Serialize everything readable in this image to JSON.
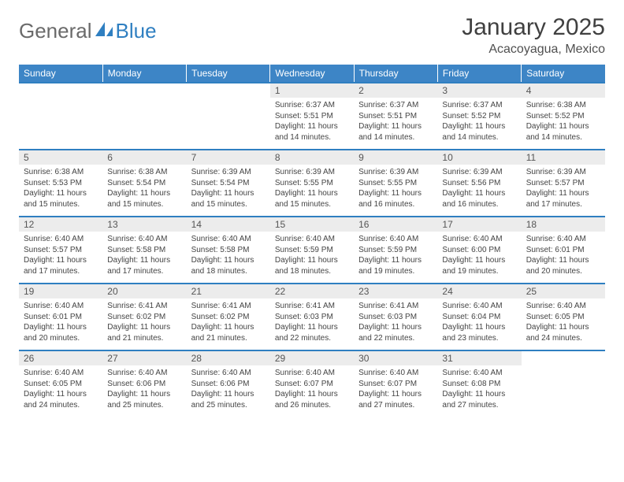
{
  "logo": {
    "part1": "General",
    "part2": "Blue"
  },
  "title": "January 2025",
  "location": "Acacoyagua, Mexico",
  "colors": {
    "header_bg": "#3d85c6",
    "header_text": "#ffffff",
    "row_divider": "#2f7fc1",
    "daynum_bg": "#ececec",
    "logo_blue": "#2f7fc1",
    "logo_gray": "#6a6a6a"
  },
  "weekdays": [
    "Sunday",
    "Monday",
    "Tuesday",
    "Wednesday",
    "Thursday",
    "Friday",
    "Saturday"
  ],
  "weeks": [
    [
      {
        "day": "",
        "sunrise": "",
        "sunset": "",
        "daylight": ""
      },
      {
        "day": "",
        "sunrise": "",
        "sunset": "",
        "daylight": ""
      },
      {
        "day": "",
        "sunrise": "",
        "sunset": "",
        "daylight": ""
      },
      {
        "day": "1",
        "sunrise": "Sunrise: 6:37 AM",
        "sunset": "Sunset: 5:51 PM",
        "daylight": "Daylight: 11 hours and 14 minutes."
      },
      {
        "day": "2",
        "sunrise": "Sunrise: 6:37 AM",
        "sunset": "Sunset: 5:51 PM",
        "daylight": "Daylight: 11 hours and 14 minutes."
      },
      {
        "day": "3",
        "sunrise": "Sunrise: 6:37 AM",
        "sunset": "Sunset: 5:52 PM",
        "daylight": "Daylight: 11 hours and 14 minutes."
      },
      {
        "day": "4",
        "sunrise": "Sunrise: 6:38 AM",
        "sunset": "Sunset: 5:52 PM",
        "daylight": "Daylight: 11 hours and 14 minutes."
      }
    ],
    [
      {
        "day": "5",
        "sunrise": "Sunrise: 6:38 AM",
        "sunset": "Sunset: 5:53 PM",
        "daylight": "Daylight: 11 hours and 15 minutes."
      },
      {
        "day": "6",
        "sunrise": "Sunrise: 6:38 AM",
        "sunset": "Sunset: 5:54 PM",
        "daylight": "Daylight: 11 hours and 15 minutes."
      },
      {
        "day": "7",
        "sunrise": "Sunrise: 6:39 AM",
        "sunset": "Sunset: 5:54 PM",
        "daylight": "Daylight: 11 hours and 15 minutes."
      },
      {
        "day": "8",
        "sunrise": "Sunrise: 6:39 AM",
        "sunset": "Sunset: 5:55 PM",
        "daylight": "Daylight: 11 hours and 15 minutes."
      },
      {
        "day": "9",
        "sunrise": "Sunrise: 6:39 AM",
        "sunset": "Sunset: 5:55 PM",
        "daylight": "Daylight: 11 hours and 16 minutes."
      },
      {
        "day": "10",
        "sunrise": "Sunrise: 6:39 AM",
        "sunset": "Sunset: 5:56 PM",
        "daylight": "Daylight: 11 hours and 16 minutes."
      },
      {
        "day": "11",
        "sunrise": "Sunrise: 6:39 AM",
        "sunset": "Sunset: 5:57 PM",
        "daylight": "Daylight: 11 hours and 17 minutes."
      }
    ],
    [
      {
        "day": "12",
        "sunrise": "Sunrise: 6:40 AM",
        "sunset": "Sunset: 5:57 PM",
        "daylight": "Daylight: 11 hours and 17 minutes."
      },
      {
        "day": "13",
        "sunrise": "Sunrise: 6:40 AM",
        "sunset": "Sunset: 5:58 PM",
        "daylight": "Daylight: 11 hours and 17 minutes."
      },
      {
        "day": "14",
        "sunrise": "Sunrise: 6:40 AM",
        "sunset": "Sunset: 5:58 PM",
        "daylight": "Daylight: 11 hours and 18 minutes."
      },
      {
        "day": "15",
        "sunrise": "Sunrise: 6:40 AM",
        "sunset": "Sunset: 5:59 PM",
        "daylight": "Daylight: 11 hours and 18 minutes."
      },
      {
        "day": "16",
        "sunrise": "Sunrise: 6:40 AM",
        "sunset": "Sunset: 5:59 PM",
        "daylight": "Daylight: 11 hours and 19 minutes."
      },
      {
        "day": "17",
        "sunrise": "Sunrise: 6:40 AM",
        "sunset": "Sunset: 6:00 PM",
        "daylight": "Daylight: 11 hours and 19 minutes."
      },
      {
        "day": "18",
        "sunrise": "Sunrise: 6:40 AM",
        "sunset": "Sunset: 6:01 PM",
        "daylight": "Daylight: 11 hours and 20 minutes."
      }
    ],
    [
      {
        "day": "19",
        "sunrise": "Sunrise: 6:40 AM",
        "sunset": "Sunset: 6:01 PM",
        "daylight": "Daylight: 11 hours and 20 minutes."
      },
      {
        "day": "20",
        "sunrise": "Sunrise: 6:41 AM",
        "sunset": "Sunset: 6:02 PM",
        "daylight": "Daylight: 11 hours and 21 minutes."
      },
      {
        "day": "21",
        "sunrise": "Sunrise: 6:41 AM",
        "sunset": "Sunset: 6:02 PM",
        "daylight": "Daylight: 11 hours and 21 minutes."
      },
      {
        "day": "22",
        "sunrise": "Sunrise: 6:41 AM",
        "sunset": "Sunset: 6:03 PM",
        "daylight": "Daylight: 11 hours and 22 minutes."
      },
      {
        "day": "23",
        "sunrise": "Sunrise: 6:41 AM",
        "sunset": "Sunset: 6:03 PM",
        "daylight": "Daylight: 11 hours and 22 minutes."
      },
      {
        "day": "24",
        "sunrise": "Sunrise: 6:40 AM",
        "sunset": "Sunset: 6:04 PM",
        "daylight": "Daylight: 11 hours and 23 minutes."
      },
      {
        "day": "25",
        "sunrise": "Sunrise: 6:40 AM",
        "sunset": "Sunset: 6:05 PM",
        "daylight": "Daylight: 11 hours and 24 minutes."
      }
    ],
    [
      {
        "day": "26",
        "sunrise": "Sunrise: 6:40 AM",
        "sunset": "Sunset: 6:05 PM",
        "daylight": "Daylight: 11 hours and 24 minutes."
      },
      {
        "day": "27",
        "sunrise": "Sunrise: 6:40 AM",
        "sunset": "Sunset: 6:06 PM",
        "daylight": "Daylight: 11 hours and 25 minutes."
      },
      {
        "day": "28",
        "sunrise": "Sunrise: 6:40 AM",
        "sunset": "Sunset: 6:06 PM",
        "daylight": "Daylight: 11 hours and 25 minutes."
      },
      {
        "day": "29",
        "sunrise": "Sunrise: 6:40 AM",
        "sunset": "Sunset: 6:07 PM",
        "daylight": "Daylight: 11 hours and 26 minutes."
      },
      {
        "day": "30",
        "sunrise": "Sunrise: 6:40 AM",
        "sunset": "Sunset: 6:07 PM",
        "daylight": "Daylight: 11 hours and 27 minutes."
      },
      {
        "day": "31",
        "sunrise": "Sunrise: 6:40 AM",
        "sunset": "Sunset: 6:08 PM",
        "daylight": "Daylight: 11 hours and 27 minutes."
      },
      {
        "day": "",
        "sunrise": "",
        "sunset": "",
        "daylight": ""
      }
    ]
  ]
}
